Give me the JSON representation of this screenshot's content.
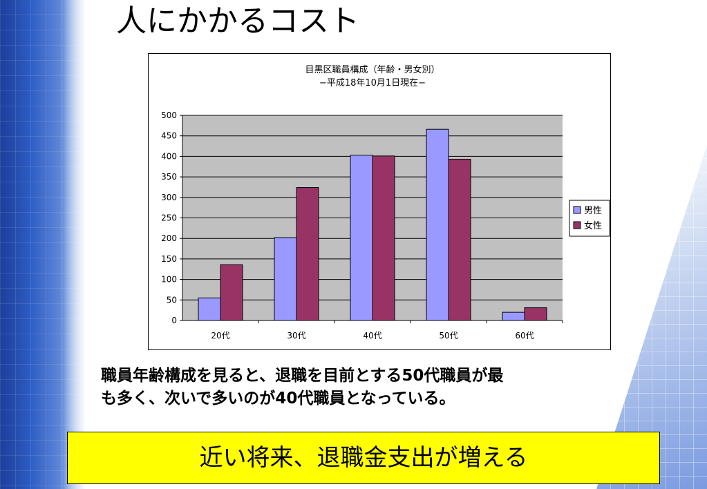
{
  "slide": {
    "title": "人にかかるコスト",
    "caption_line1": "職員年齢構成を見ると、退職を目前とする50代職員が最",
    "caption_line2": "も多く、次いで多いのが40代職員となっている。",
    "callout": "近い将来、退職金支出が増える"
  },
  "chart_data": {
    "type": "bar",
    "title": "目黒区職員構成（年齢・男女別）",
    "subtitle": "−平成18年10月1日現在−",
    "categories": [
      "20代",
      "30代",
      "40代",
      "50代",
      "60代"
    ],
    "series": [
      {
        "name": "男性",
        "values": [
          55,
          202,
          403,
          466,
          20
        ],
        "color": "#9999ff"
      },
      {
        "name": "女性",
        "values": [
          136,
          324,
          401,
          393,
          31
        ],
        "color": "#993366"
      }
    ],
    "ylim": [
      0,
      500
    ],
    "yticks": [
      0,
      50,
      100,
      150,
      200,
      250,
      300,
      350,
      400,
      450,
      500
    ],
    "grid": true,
    "plot_background": "#c0c0c0",
    "legend": "right",
    "xlabel": "",
    "ylabel": ""
  }
}
